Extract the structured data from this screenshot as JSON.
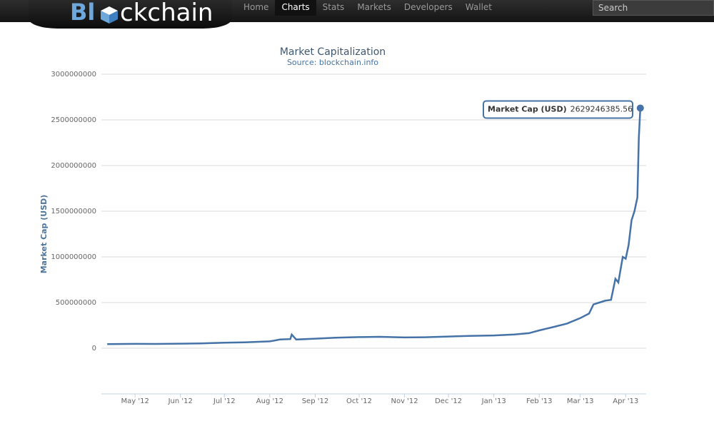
{
  "nav": {
    "logo_parts": [
      "Bl",
      "ckchain"
    ],
    "items": [
      "Home",
      "Charts",
      "Stats",
      "Markets",
      "Developers",
      "Wallet"
    ],
    "active": 1,
    "search_placeholder": "Search"
  },
  "chart_data": {
    "type": "line",
    "title": "Market Capitalization",
    "subtitle": "Source: blockchain.info",
    "y_label": "Market Cap (USD)",
    "x": [
      "2012-04-12",
      "2012-05-01",
      "2012-05-15",
      "2012-06-01",
      "2012-06-15",
      "2012-07-01",
      "2012-07-15",
      "2012-08-01",
      "2012-08-08",
      "2012-08-15",
      "2012-08-16",
      "2012-08-19",
      "2012-09-01",
      "2012-09-15",
      "2012-10-01",
      "2012-10-15",
      "2012-11-01",
      "2012-11-15",
      "2012-12-01",
      "2012-12-15",
      "2013-01-01",
      "2013-01-15",
      "2013-01-25",
      "2013-02-01",
      "2013-02-10",
      "2013-02-20",
      "2013-03-01",
      "2013-03-07",
      "2013-03-10",
      "2013-03-14",
      "2013-03-18",
      "2013-03-22",
      "2013-03-25",
      "2013-03-27",
      "2013-03-30",
      "2013-04-01",
      "2013-04-03",
      "2013-04-05",
      "2013-04-07",
      "2013-04-09",
      "2013-04-10",
      "2013-04-11"
    ],
    "series": [
      {
        "name": "Market Cap (USD)",
        "color": "#4572a7",
        "values": [
          45000000,
          48000000,
          47000000,
          50000000,
          52000000,
          60000000,
          65000000,
          75000000,
          95000000,
          100000000,
          150000000,
          95000000,
          105000000,
          115000000,
          122000000,
          125000000,
          118000000,
          120000000,
          128000000,
          135000000,
          140000000,
          150000000,
          165000000,
          195000000,
          230000000,
          270000000,
          330000000,
          380000000,
          480000000,
          500000000,
          520000000,
          530000000,
          760000000,
          720000000,
          1000000000,
          980000000,
          1130000000,
          1400000000,
          1500000000,
          1650000000,
          2300000000,
          2629246385.56
        ]
      }
    ],
    "xlim": [
      "2012-04-08",
      "2013-04-15"
    ],
    "xticks": [
      {
        "value": "2012-05-01",
        "label": "May '12"
      },
      {
        "value": "2012-06-01",
        "label": "Jun '12"
      },
      {
        "value": "2012-07-01",
        "label": "Jul '12"
      },
      {
        "value": "2012-08-01",
        "label": "Aug '12"
      },
      {
        "value": "2012-09-01",
        "label": "Sep '12"
      },
      {
        "value": "2012-10-01",
        "label": "Oct '12"
      },
      {
        "value": "2012-11-01",
        "label": "Nov '12"
      },
      {
        "value": "2012-12-01",
        "label": "Dec '12"
      },
      {
        "value": "2013-01-01",
        "label": "Jan '13"
      },
      {
        "value": "2013-02-01",
        "label": "Feb '13"
      },
      {
        "value": "2013-03-01",
        "label": "Mar '13"
      },
      {
        "value": "2013-04-01",
        "label": "Apr '13"
      }
    ],
    "ylim": [
      -500000000,
      3000000000
    ],
    "yticks": [
      0,
      500000000,
      1000000000,
      1500000000,
      2000000000,
      2500000000,
      3000000000
    ],
    "grid": true
  }
}
